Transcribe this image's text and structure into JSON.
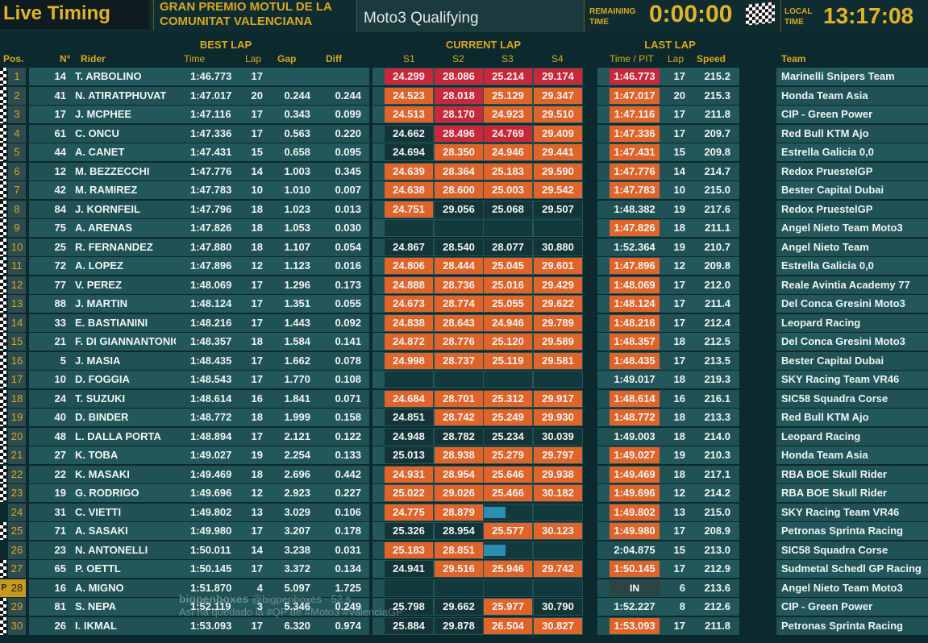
{
  "header": {
    "title": "Live Timing",
    "event_line1": "GRAN PREMIO MOTUL DE LA",
    "event_line2": "COMUNITAT VALENCIANA",
    "session": "Moto3  Qualifying",
    "remaining_label_1": "REMAINING",
    "remaining_label_2": "TIME",
    "remaining_value": "0:00:00",
    "local_label_1": "LOCAL",
    "local_label_2": "TIME",
    "local_value": "13:17:08"
  },
  "columns": {
    "best_lap_group": "BEST LAP",
    "current_lap_group": "CURRENT LAP",
    "last_lap_group": "LAST LAP",
    "pos": "Pos.",
    "number": "N°",
    "rider": "Rider",
    "time": "Time",
    "lap": "Lap",
    "gap": "Gap",
    "diff": "Diff",
    "s1": "S1",
    "s2": "S2",
    "s3": "S3",
    "s4": "S4",
    "time_pit": "Time / PIT",
    "last_lap": "Lap",
    "speed": "Speed",
    "team": "Team"
  },
  "colors": {
    "accent_gold": "#d9a720",
    "sector_personal_best": "#e0642a",
    "sector_session_best": "#c8283a",
    "row_bg": "#22575b",
    "progress_bar": "#2a8db1"
  },
  "rows": [
    {
      "pos": "1",
      "num": "14",
      "rider": "T. ARBOLINO",
      "time": "1:46.773",
      "lap": "17",
      "gap": "",
      "diff": "",
      "s1": "24.299",
      "s1c": "red",
      "s2": "28.086",
      "s2c": "red",
      "s3": "25.214",
      "s3c": "red",
      "s4": "29.174",
      "s4c": "red",
      "last": "1:46.773",
      "lastc": "red",
      "llap": "17",
      "speed": "215.2",
      "team": "Marinelli Snipers Team",
      "flag": true
    },
    {
      "pos": "2",
      "num": "41",
      "rider": "N. ATIRATPHUVAT",
      "time": "1:47.017",
      "lap": "20",
      "gap": "0.244",
      "diff": "0.244",
      "s1": "24.523",
      "s1c": "orange",
      "s2": "28.018",
      "s2c": "red",
      "s3": "25.129",
      "s3c": "orange",
      "s4": "29.347",
      "s4c": "orange",
      "last": "1:47.017",
      "lastc": "orange",
      "llap": "20",
      "speed": "215.3",
      "team": "Honda Team Asia",
      "flag": true
    },
    {
      "pos": "3",
      "num": "17",
      "rider": "J. MCPHEE",
      "time": "1:47.116",
      "lap": "17",
      "gap": "0.343",
      "diff": "0.099",
      "s1": "24.513",
      "s1c": "orange",
      "s2": "28.170",
      "s2c": "red",
      "s3": "24.923",
      "s3c": "orange",
      "s4": "29.510",
      "s4c": "orange",
      "last": "1:47.116",
      "lastc": "orange",
      "llap": "17",
      "speed": "211.8",
      "team": "CIP - Green Power",
      "flag": true
    },
    {
      "pos": "4",
      "num": "61",
      "rider": "C. ONCU",
      "time": "1:47.336",
      "lap": "17",
      "gap": "0.563",
      "diff": "0.220",
      "s1": "24.662",
      "s1c": "dark",
      "s2": "28.496",
      "s2c": "red",
      "s3": "24.769",
      "s3c": "red",
      "s4": "29.409",
      "s4c": "orange",
      "last": "1:47.336",
      "lastc": "orange",
      "llap": "17",
      "speed": "209.7",
      "team": "Red Bull KTM Ajo",
      "flag": true
    },
    {
      "pos": "5",
      "num": "44",
      "rider": "A. CANET",
      "time": "1:47.431",
      "lap": "15",
      "gap": "0.658",
      "diff": "0.095",
      "s1": "24.694",
      "s1c": "dark",
      "s2": "28.350",
      "s2c": "orange",
      "s3": "24.946",
      "s3c": "orange",
      "s4": "29.441",
      "s4c": "orange",
      "last": "1:47.431",
      "lastc": "orange",
      "llap": "15",
      "speed": "209.8",
      "team": "Estrella Galicia 0,0",
      "flag": true
    },
    {
      "pos": "6",
      "num": "12",
      "rider": "M. BEZZECCHI",
      "time": "1:47.776",
      "lap": "14",
      "gap": "1.003",
      "diff": "0.345",
      "s1": "24.639",
      "s1c": "orange",
      "s2": "28.364",
      "s2c": "orange",
      "s3": "25.183",
      "s3c": "orange",
      "s4": "29.590",
      "s4c": "orange",
      "last": "1:47.776",
      "lastc": "orange",
      "llap": "14",
      "speed": "214.7",
      "team": "Redox PruestelGP",
      "flag": true
    },
    {
      "pos": "7",
      "num": "42",
      "rider": "M. RAMIREZ",
      "time": "1:47.783",
      "lap": "10",
      "gap": "1.010",
      "diff": "0.007",
      "s1": "24.638",
      "s1c": "orange",
      "s2": "28.600",
      "s2c": "orange",
      "s3": "25.003",
      "s3c": "orange",
      "s4": "29.542",
      "s4c": "orange",
      "last": "1:47.783",
      "lastc": "orange",
      "llap": "10",
      "speed": "215.0",
      "team": "Bester Capital Dubai",
      "flag": true
    },
    {
      "pos": "8",
      "num": "84",
      "rider": "J. KORNFEIL",
      "time": "1:47.796",
      "lap": "18",
      "gap": "1.023",
      "diff": "0.013",
      "s1": "24.751",
      "s1c": "orange",
      "s2": "29.056",
      "s2c": "dark",
      "s3": "25.068",
      "s3c": "dark",
      "s4": "29.507",
      "s4c": "dark",
      "last": "1:48.382",
      "lastc": "none",
      "llap": "19",
      "speed": "217.6",
      "team": "Redox PruestelGP",
      "flag": true
    },
    {
      "pos": "9",
      "num": "75",
      "rider": "A. ARENAS",
      "time": "1:47.826",
      "lap": "18",
      "gap": "1.053",
      "diff": "0.030",
      "s1": "",
      "s1c": "empty",
      "s2": "",
      "s2c": "empty",
      "s3": "",
      "s3c": "empty",
      "s4": "",
      "s4c": "empty",
      "last": "1:47.826",
      "lastc": "orange",
      "llap": "18",
      "speed": "211.1",
      "team": "Angel Nieto Team Moto3",
      "flag": true
    },
    {
      "pos": "10",
      "num": "25",
      "rider": "R. FERNANDEZ",
      "time": "1:47.880",
      "lap": "18",
      "gap": "1.107",
      "diff": "0.054",
      "s1": "24.867",
      "s1c": "dark",
      "s2": "28.540",
      "s2c": "dark",
      "s3": "28.077",
      "s3c": "dark",
      "s4": "30.880",
      "s4c": "dark",
      "last": "1:52.364",
      "lastc": "none",
      "llap": "19",
      "speed": "210.7",
      "team": "Angel Nieto Team",
      "flag": true
    },
    {
      "pos": "11",
      "num": "72",
      "rider": "A. LOPEZ",
      "time": "1:47.896",
      "lap": "12",
      "gap": "1.123",
      "diff": "0.016",
      "s1": "24.806",
      "s1c": "orange",
      "s2": "28.444",
      "s2c": "orange",
      "s3": "25.045",
      "s3c": "orange",
      "s4": "29.601",
      "s4c": "orange",
      "last": "1:47.896",
      "lastc": "orange",
      "llap": "12",
      "speed": "209.8",
      "team": "Estrella Galicia 0,0",
      "flag": true
    },
    {
      "pos": "12",
      "num": "77",
      "rider": "V. PEREZ",
      "time": "1:48.069",
      "lap": "17",
      "gap": "1.296",
      "diff": "0.173",
      "s1": "24.888",
      "s1c": "orange",
      "s2": "28.736",
      "s2c": "orange",
      "s3": "25.016",
      "s3c": "orange",
      "s4": "29.429",
      "s4c": "orange",
      "last": "1:48.069",
      "lastc": "orange",
      "llap": "17",
      "speed": "212.0",
      "team": "Reale Avintia Academy 77",
      "flag": true
    },
    {
      "pos": "13",
      "num": "88",
      "rider": "J. MARTIN",
      "time": "1:48.124",
      "lap": "17",
      "gap": "1.351",
      "diff": "0.055",
      "s1": "24.673",
      "s1c": "orange",
      "s2": "28.774",
      "s2c": "orange",
      "s3": "25.055",
      "s3c": "orange",
      "s4": "29.622",
      "s4c": "orange",
      "last": "1:48.124",
      "lastc": "orange",
      "llap": "17",
      "speed": "211.4",
      "team": "Del Conca Gresini Moto3",
      "flag": true
    },
    {
      "pos": "14",
      "num": "33",
      "rider": "E. BASTIANINI",
      "time": "1:48.216",
      "lap": "17",
      "gap": "1.443",
      "diff": "0.092",
      "s1": "24.838",
      "s1c": "orange",
      "s2": "28.643",
      "s2c": "orange",
      "s3": "24.946",
      "s3c": "orange",
      "s4": "29.789",
      "s4c": "orange",
      "last": "1:48.216",
      "lastc": "orange",
      "llap": "17",
      "speed": "212.4",
      "team": "Leopard Racing",
      "flag": true
    },
    {
      "pos": "15",
      "num": "21",
      "rider": "F. DI GIANNANTONIO",
      "time": "1:48.357",
      "lap": "18",
      "gap": "1.584",
      "diff": "0.141",
      "s1": "24.872",
      "s1c": "orange",
      "s2": "28.776",
      "s2c": "orange",
      "s3": "25.120",
      "s3c": "orange",
      "s4": "29.589",
      "s4c": "orange",
      "last": "1:48.357",
      "lastc": "orange",
      "llap": "18",
      "speed": "212.5",
      "team": "Del Conca Gresini Moto3",
      "flag": true
    },
    {
      "pos": "16",
      "num": "5",
      "rider": "J. MASIA",
      "time": "1:48.435",
      "lap": "17",
      "gap": "1.662",
      "diff": "0.078",
      "s1": "24.998",
      "s1c": "orange",
      "s2": "28.737",
      "s2c": "orange",
      "s3": "25.119",
      "s3c": "orange",
      "s4": "29.581",
      "s4c": "orange",
      "last": "1:48.435",
      "lastc": "orange",
      "llap": "17",
      "speed": "213.5",
      "team": "Bester Capital Dubai",
      "flag": true
    },
    {
      "pos": "17",
      "num": "10",
      "rider": "D. FOGGIA",
      "time": "1:48.543",
      "lap": "17",
      "gap": "1.770",
      "diff": "0.108",
      "s1": "",
      "s1c": "empty",
      "s2": "",
      "s2c": "empty",
      "s3": "",
      "s3c": "empty",
      "s4": "",
      "s4c": "empty",
      "last": "1:49.017",
      "lastc": "none",
      "llap": "18",
      "speed": "219.3",
      "team": "SKY Racing Team VR46",
      "flag": true
    },
    {
      "pos": "18",
      "num": "24",
      "rider": "T. SUZUKI",
      "time": "1:48.614",
      "lap": "16",
      "gap": "1.841",
      "diff": "0.071",
      "s1": "24.684",
      "s1c": "orange",
      "s2": "28.701",
      "s2c": "orange",
      "s3": "25.312",
      "s3c": "orange",
      "s4": "29.917",
      "s4c": "orange",
      "last": "1:48.614",
      "lastc": "orange",
      "llap": "16",
      "speed": "216.1",
      "team": "SIC58 Squadra Corse",
      "flag": true
    },
    {
      "pos": "19",
      "num": "40",
      "rider": "D. BINDER",
      "time": "1:48.772",
      "lap": "18",
      "gap": "1.999",
      "diff": "0.158",
      "s1": "24.851",
      "s1c": "dark",
      "s2": "28.742",
      "s2c": "orange",
      "s3": "25.249",
      "s3c": "orange",
      "s4": "29.930",
      "s4c": "orange",
      "last": "1:48.772",
      "lastc": "orange",
      "llap": "18",
      "speed": "213.3",
      "team": "Red Bull KTM Ajo",
      "flag": true
    },
    {
      "pos": "20",
      "num": "48",
      "rider": "L. DALLA PORTA",
      "time": "1:48.894",
      "lap": "17",
      "gap": "2.121",
      "diff": "0.122",
      "s1": "24.948",
      "s1c": "dark",
      "s2": "28.782",
      "s2c": "dark",
      "s3": "25.234",
      "s3c": "dark",
      "s4": "30.039",
      "s4c": "dark",
      "last": "1:49.003",
      "lastc": "none",
      "llap": "18",
      "speed": "214.0",
      "team": "Leopard Racing",
      "flag": true
    },
    {
      "pos": "21",
      "num": "27",
      "rider": "K. TOBA",
      "time": "1:49.027",
      "lap": "19",
      "gap": "2.254",
      "diff": "0.133",
      "s1": "25.013",
      "s1c": "dark",
      "s2": "28.938",
      "s2c": "orange",
      "s3": "25.279",
      "s3c": "orange",
      "s4": "29.797",
      "s4c": "orange",
      "last": "1:49.027",
      "lastc": "orange",
      "llap": "19",
      "speed": "210.3",
      "team": "Honda Team Asia",
      "flag": true
    },
    {
      "pos": "22",
      "num": "22",
      "rider": "K. MASAKI",
      "time": "1:49.469",
      "lap": "18",
      "gap": "2.696",
      "diff": "0.442",
      "s1": "24.931",
      "s1c": "orange",
      "s2": "28.954",
      "s2c": "orange",
      "s3": "25.646",
      "s3c": "orange",
      "s4": "29.938",
      "s4c": "orange",
      "last": "1:49.469",
      "lastc": "orange",
      "llap": "18",
      "speed": "217.1",
      "team": "RBA BOE Skull Rider",
      "flag": true
    },
    {
      "pos": "23",
      "num": "19",
      "rider": "G. RODRIGO",
      "time": "1:49.696",
      "lap": "12",
      "gap": "2.923",
      "diff": "0.227",
      "s1": "25.022",
      "s1c": "orange",
      "s2": "29.026",
      "s2c": "orange",
      "s3": "25.466",
      "s3c": "orange",
      "s4": "30.182",
      "s4c": "orange",
      "last": "1:49.696",
      "lastc": "orange",
      "llap": "12",
      "speed": "214.2",
      "team": "RBA BOE Skull Rider",
      "flag": true
    },
    {
      "pos": "24",
      "num": "31",
      "rider": "C. VIETTI",
      "time": "1:49.802",
      "lap": "13",
      "gap": "3.029",
      "diff": "0.106",
      "s1": "24.775",
      "s1c": "orange",
      "s2": "28.879",
      "s2c": "orange",
      "s3": "",
      "s3c": "prog",
      "s3p": 0.45,
      "s4": "",
      "s4c": "empty",
      "last": "1:49.802",
      "lastc": "orange",
      "llap": "13",
      "speed": "215.0",
      "team": "SKY Racing Team VR46",
      "flag": false
    },
    {
      "pos": "25",
      "num": "71",
      "rider": "A. SASAKI",
      "time": "1:49.980",
      "lap": "17",
      "gap": "3.207",
      "diff": "0.178",
      "s1": "25.326",
      "s1c": "dark",
      "s2": "28.954",
      "s2c": "dark",
      "s3": "25.577",
      "s3c": "orange",
      "s4": "30.123",
      "s4c": "orange",
      "last": "1:49.980",
      "lastc": "orange",
      "llap": "17",
      "speed": "208.9",
      "team": "Petronas Sprinta Racing",
      "flag": true
    },
    {
      "pos": "26",
      "num": "23",
      "rider": "N. ANTONELLI",
      "time": "1:50.011",
      "lap": "14",
      "gap": "3.238",
      "diff": "0.031",
      "s1": "25.183",
      "s1c": "orange",
      "s2": "28.851",
      "s2c": "orange",
      "s3": "",
      "s3c": "prog",
      "s3p": 0.45,
      "s4": "",
      "s4c": "empty",
      "last": "2:04.875",
      "lastc": "none",
      "llap": "15",
      "speed": "213.0",
      "team": "SIC58 Squadra Corse",
      "flag": false
    },
    {
      "pos": "27",
      "num": "65",
      "rider": "P. OETTL",
      "time": "1:50.145",
      "lap": "17",
      "gap": "3.372",
      "diff": "0.134",
      "s1": "24.941",
      "s1c": "dark",
      "s2": "29.516",
      "s2c": "orange",
      "s3": "25.946",
      "s3c": "orange",
      "s4": "29.742",
      "s4c": "orange",
      "last": "1:50.145",
      "lastc": "orange",
      "llap": "17",
      "speed": "212.9",
      "team": "Sudmetal Schedl GP Racing",
      "flag": true
    },
    {
      "pos": "28",
      "num": "16",
      "rider": "A. MIGNO",
      "time": "1:51.870",
      "lap": "4",
      "gap": "5.097",
      "diff": "1.725",
      "s1": "",
      "s1c": "empty",
      "s2": "",
      "s2c": "empty",
      "s3": "",
      "s3c": "empty",
      "s4": "",
      "s4c": "empty",
      "last": "IN",
      "lastc": "pit",
      "llap": "6",
      "speed": "213.6",
      "team": "Angel Nieto Team Moto3",
      "flag": false,
      "pit": "P"
    },
    {
      "pos": "29",
      "num": "81",
      "rider": "S. NEPA",
      "time": "1:52.119",
      "lap": "3",
      "gap": "5.346",
      "diff": "0.249",
      "s1": "25.798",
      "s1c": "dark",
      "s2": "29.662",
      "s2c": "dark",
      "s3": "25.977",
      "s3c": "orange",
      "s4": "30.790",
      "s4c": "dark",
      "last": "1:52.227",
      "lastc": "none",
      "llap": "8",
      "speed": "212.6",
      "team": "CIP - Green Power",
      "flag": true
    },
    {
      "pos": "30",
      "num": "26",
      "rider": "I. IKMAL",
      "time": "1:53.093",
      "lap": "17",
      "gap": "6.320",
      "diff": "0.974",
      "s1": "25.884",
      "s1c": "dark",
      "s2": "29.878",
      "s2c": "dark",
      "s3": "26.504",
      "s3c": "orange",
      "s4": "30.827",
      "s4c": "orange",
      "last": "1:53.093",
      "lastc": "orange",
      "llap": "17",
      "speed": "211.8",
      "team": "Petronas Sprinta Racing",
      "flag": true
    }
  ],
  "watermark": {
    "line1_bold": "bigpenboxes",
    "line1_rest": "@bigpenboxes · 52 s",
    "line2": "Así ha quedado la #QP de #Moto3 #ValenciaGP"
  }
}
